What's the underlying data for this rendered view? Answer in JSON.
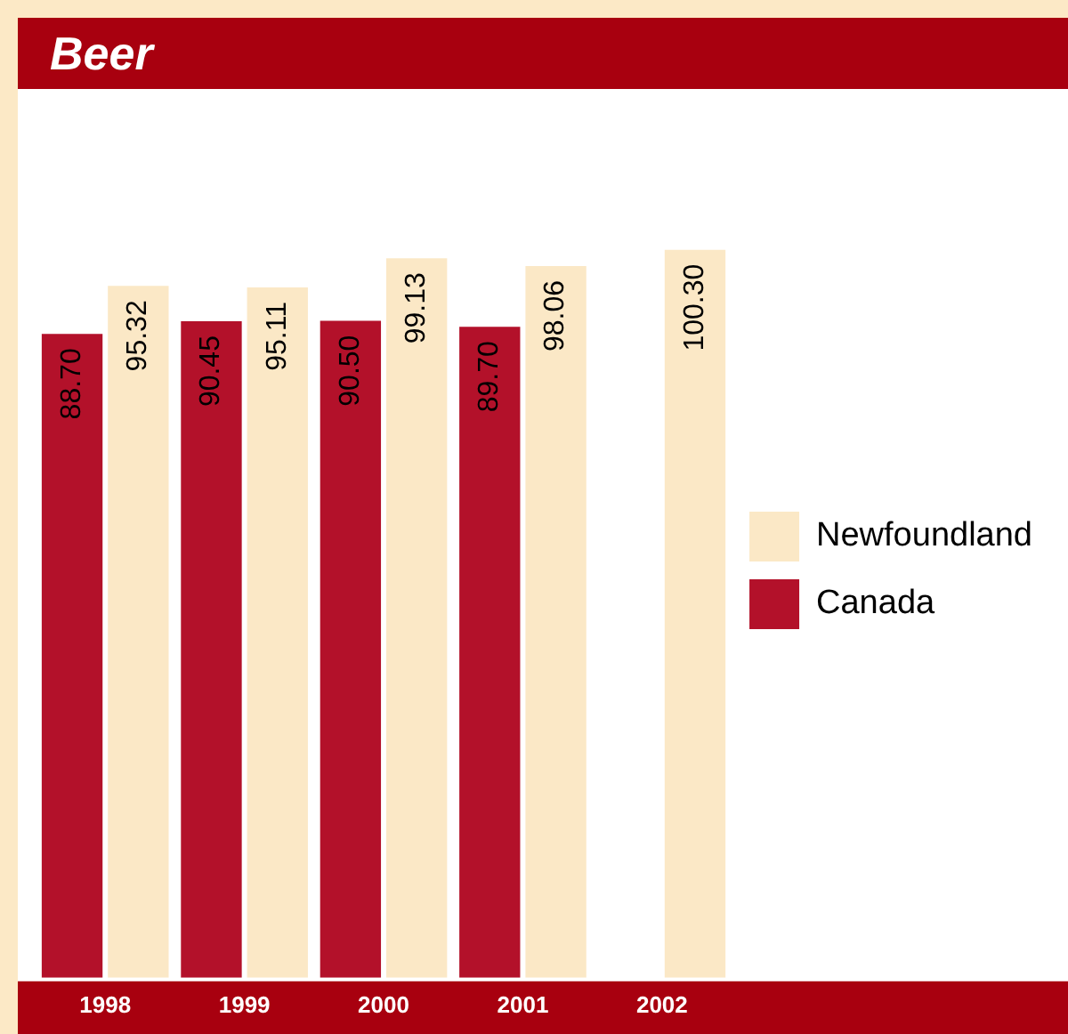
{
  "chart_data": {
    "type": "bar",
    "title": "Beer",
    "categories": [
      "1998",
      "1999",
      "2000",
      "2001",
      "2002"
    ],
    "series": [
      {
        "name": "Canada",
        "color": "#b3112a",
        "values": [
          88.7,
          90.45,
          90.5,
          89.7,
          null
        ],
        "value_labels": [
          "88.70",
          "90.45",
          "90.50",
          "89.70",
          null
        ]
      },
      {
        "name": "Newfoundland",
        "color": "#fbe8c6",
        "values": [
          95.32,
          95.11,
          99.13,
          98.06,
          100.3
        ],
        "value_labels": [
          "95.32",
          "95.11",
          "99.13",
          "98.06",
          "100.30"
        ]
      }
    ],
    "legend": "right",
    "grid": false,
    "tick_labels": "x"
  }
}
